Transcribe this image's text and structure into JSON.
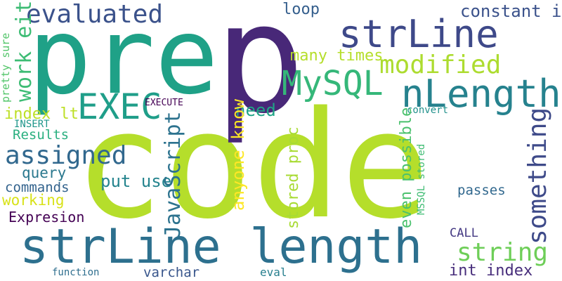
{
  "words": [
    {
      "text": "code",
      "color": "#b5de2b"
    },
    {
      "text": "p",
      "color": "#482878"
    },
    {
      "text": "pre",
      "color": "#1fa187"
    },
    {
      "text": "strLine length",
      "color": "#2d708e"
    },
    {
      "text": "strLine",
      "color": "#3e4989"
    },
    {
      "text": "nLength",
      "color": "#26828e"
    },
    {
      "text": "MySQL",
      "color": "#35b779"
    },
    {
      "text": "EXEC",
      "color": "#1f9e89"
    },
    {
      "text": "evaluated",
      "color": "#3b528b"
    },
    {
      "text": "modified",
      "color": "#addc30"
    },
    {
      "text": "string",
      "color": "#6ece58"
    },
    {
      "text": "assigned",
      "color": "#31688e"
    },
    {
      "text": "many times",
      "color": "#b5de2b"
    },
    {
      "text": "need",
      "color": "#20a486"
    },
    {
      "text": "loop",
      "color": "#355f8d"
    },
    {
      "text": "constant int",
      "color": "#3b528b"
    },
    {
      "text": "put use",
      "color": "#25848e"
    },
    {
      "text": "int index",
      "color": "#472d7b"
    },
    {
      "text": "index lt",
      "color": "#bddf26"
    },
    {
      "text": "Results",
      "color": "#29af7f"
    },
    {
      "text": "query",
      "color": "#2a788e"
    },
    {
      "text": "commands",
      "color": "#33638d"
    },
    {
      "text": "working",
      "color": "#d8e219"
    },
    {
      "text": "Expresion",
      "color": "#440154"
    },
    {
      "text": "varchar",
      "color": "#39568c"
    },
    {
      "text": "passes",
      "color": "#31688e"
    },
    {
      "text": "CALL",
      "color": "#443983"
    },
    {
      "text": "INSERT",
      "color": "#1f968b"
    },
    {
      "text": "EXECUTE",
      "color": "#440154"
    },
    {
      "text": "convert",
      "color": "#21918c"
    },
    {
      "text": "function",
      "color": "#2e6e8e"
    },
    {
      "text": "eval",
      "color": "#277f8e"
    },
    {
      "text": "something",
      "color": "#3e4a89"
    },
    {
      "text": "JavaScript",
      "color": "#2c728e"
    },
    {
      "text": "work either",
      "color": "#3dbc74"
    },
    {
      "text": "anyone know",
      "color": "#fde725"
    },
    {
      "text": "stored proc",
      "color": "#a8db34"
    },
    {
      "text": "even possible",
      "color": "#4ac16d"
    },
    {
      "text": "pretty sure",
      "color": "#52c569"
    },
    {
      "text": "MSSQL stored",
      "color": "#3fbc73"
    }
  ]
}
